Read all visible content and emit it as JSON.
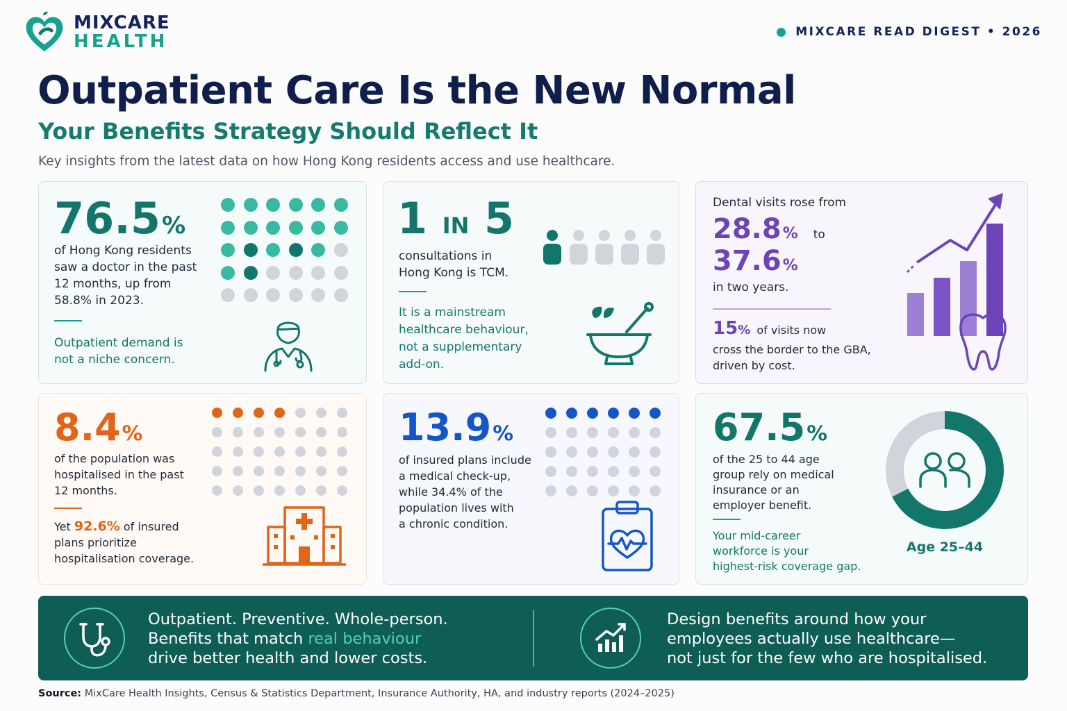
{
  "brand": {
    "line1": "MIXCARE",
    "line2": "HEALTH",
    "digest": "MIXCARE READ DIGEST • 2026"
  },
  "header": {
    "title": "Outpatient Care Is the New Normal",
    "subtitle": "Your Benefits Strategy Should Reflect It",
    "intro": "Key insights from the latest data on how Hong Kong residents access and use healthcare."
  },
  "cards": {
    "doctor": {
      "stat": "76.5",
      "pct": "%",
      "line1": "of Hong Kong residents",
      "line2": "saw a doctor in the past",
      "line3": "12 months, up from",
      "line4": "58.8% in 2023.",
      "note1": "Outpatient demand is",
      "note2": "not a niche concern.",
      "icon": "doctor-icon",
      "color": "#13766b"
    },
    "tcm": {
      "stat_a": "1",
      "stat_in": "IN",
      "stat_b": "5",
      "line1": "consultations in",
      "line2": "Hong Kong is TCM.",
      "note1": "It is a mainstream",
      "note2": "healthcare behaviour,",
      "note3": "not a supplementary",
      "note4": "add-on.",
      "icon": "mortar-pestle-icon",
      "color": "#13766b"
    },
    "dental": {
      "intro": "Dental visits rose from",
      "stat1": "28.8",
      "stat2": "37.6",
      "pct": "%",
      "to": "to",
      "period": "in two years.",
      "stat3": "15",
      "line1": "of visits now",
      "line2": "cross the border to the GBA,",
      "line3": "driven by cost.",
      "icon": "tooth-icon",
      "color": "#6d43b8"
    },
    "hospital": {
      "stat": "8.4",
      "pct": "%",
      "line1": "of the population was",
      "line2": "hospitalised in the past",
      "line3": "12 months.",
      "yet": "Yet",
      "stat2": "92.6%",
      "line4": "of insured",
      "line5": "plans prioritize",
      "line6": "hospitalisation coverage.",
      "icon": "hospital-icon",
      "color": "#e0651a"
    },
    "checkup": {
      "stat": "13.9",
      "pct": "%",
      "line1": "of insured plans include",
      "line2": "a medical check-up,",
      "line3": "while 34.4% of the",
      "line4": "population lives with",
      "line5": "a chronic condition.",
      "icon": "clipboard-heart-icon",
      "color": "#1556c7"
    },
    "age": {
      "stat": "67.5",
      "pct": "%",
      "line1": "of the 25 to 44 age",
      "line2": "group rely on medical",
      "line3": "insurance or an",
      "line4": "employer benefit.",
      "note1": "Your mid-career",
      "note2": "workforce is your",
      "note3": "highest-risk coverage gap.",
      "donut_label": "Age 25–44",
      "donut_value": 67.5,
      "icon": "people-icon",
      "color": "#13766b"
    }
  },
  "banner": {
    "left1": "Outpatient. Preventive. Whole-person.",
    "left2a": "Benefits that match ",
    "left2b": "real behaviour",
    "left3": "drive better health and lower costs.",
    "right1": "Design benefits around how your",
    "right2": "employees actually use healthcare—",
    "right3": "not just for the few who are hospitalised.",
    "icon_left": "stethoscope-icon",
    "icon_right": "growth-chart-icon",
    "bg": "#0f5e55",
    "accent": "#4fd1b8"
  },
  "source": {
    "label": "Source:",
    "text": " MixCare Health Insights, Census & Statistics Department, Insurance Authority, HA, and industry reports (2024–2025)"
  }
}
